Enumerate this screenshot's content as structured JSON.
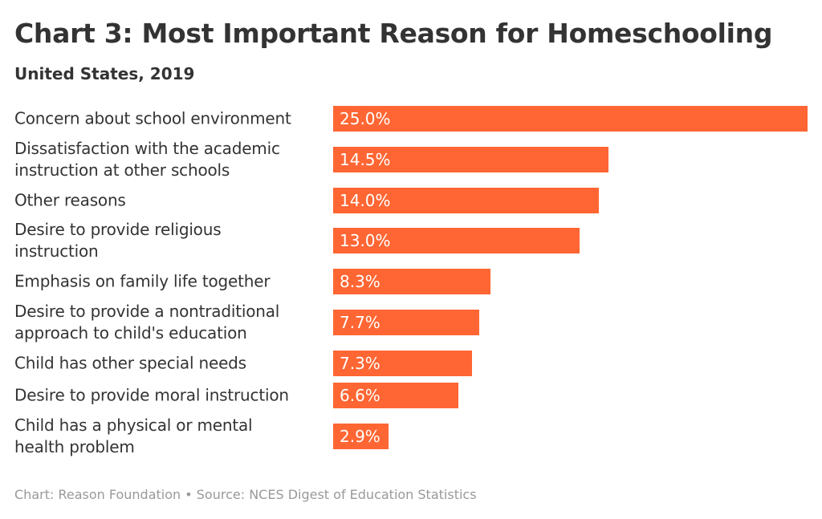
{
  "chart_data": {
    "type": "bar",
    "orientation": "horizontal",
    "title": "Chart 3: Most Important Reason for Homeschooling",
    "subtitle": "United States, 2019",
    "categories": [
      "Concern about school environment",
      "Dissatisfaction with the academic\ninstruction at other schools",
      "Other reasons",
      "Desire to provide religious\ninstruction",
      "Emphasis on family life together",
      "Desire to provide a nontraditional\napproach to child's education",
      "Child has other special needs",
      "Desire to provide moral instruction",
      "Child has a physical or mental\nhealth problem"
    ],
    "values": [
      25.0,
      14.5,
      14.0,
      13.0,
      8.3,
      7.7,
      7.3,
      6.6,
      2.9
    ],
    "value_labels": [
      "25.0%",
      "14.5%",
      "14.0%",
      "13.0%",
      "8.3%",
      "7.7%",
      "7.3%",
      "6.6%",
      "2.9%"
    ],
    "xlim": [
      0,
      25
    ],
    "grid": false,
    "bar_color": "#ff6633"
  },
  "footer": "Chart: Reason Foundation • Source: NCES Digest of Education Statistics"
}
